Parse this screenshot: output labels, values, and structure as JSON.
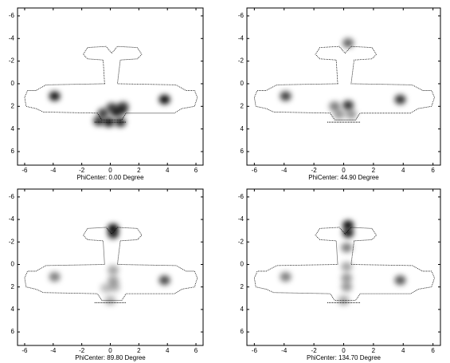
{
  "chart_data": [
    {
      "type": "scatter",
      "x_label": "PhiCenter: 0.00 Degree",
      "x": [
        -3.9,
        3.8,
        0.1,
        -0.5,
        0.4,
        0.8,
        -0.8,
        -0.1,
        0.7,
        0.9
      ],
      "y": [
        1.1,
        1.4,
        2.1,
        2.6,
        2.5,
        2.3,
        3.3,
        3.4,
        3.4,
        2.0
      ],
      "intensity": [
        0.9,
        0.95,
        0.7,
        0.75,
        0.8,
        0.7,
        0.8,
        0.9,
        0.85,
        0.6
      ],
      "xlim": [
        -6.5,
        6.5
      ],
      "ylim": [
        -6.7,
        7.2
      ],
      "xticks": [
        -6,
        -4,
        -2,
        0,
        2,
        4,
        6
      ],
      "yticks": [
        -6,
        -4,
        -2,
        0,
        2,
        4,
        6
      ]
    },
    {
      "type": "scatter",
      "x_label": "PhiCenter: 44.90 Degree",
      "x": [
        0.3,
        -3.9,
        3.8,
        0.3,
        -0.6,
        -0.3,
        0.5
      ],
      "y": [
        -3.6,
        1.1,
        1.4,
        1.9,
        2.0,
        2.7,
        2.7
      ],
      "intensity": [
        0.6,
        0.75,
        0.8,
        0.8,
        0.5,
        0.4,
        0.4
      ],
      "xlim": [
        -6.5,
        6.5
      ],
      "ylim": [
        -6.7,
        7.2
      ],
      "xticks": [
        -6,
        -4,
        -2,
        0,
        2,
        4,
        6
      ],
      "yticks": [
        -6,
        -4,
        -2,
        0,
        2,
        4,
        6
      ]
    },
    {
      "type": "scatter",
      "x_label": "PhiCenter: 89.80 Degree",
      "x": [
        0.2,
        0.2,
        -3.9,
        3.8,
        0.2,
        0.2,
        0.3,
        -0.3,
        0.0
      ],
      "y": [
        -3.2,
        -2.7,
        1.1,
        1.4,
        0.5,
        1.4,
        2.0,
        2.1,
        3.2
      ],
      "intensity": [
        0.95,
        0.8,
        0.5,
        0.7,
        0.35,
        0.35,
        0.3,
        0.25,
        0.3
      ],
      "xlim": [
        -6.5,
        6.5
      ],
      "ylim": [
        -6.7,
        7.2
      ],
      "xticks": [
        -6,
        -4,
        -2,
        0,
        2,
        4,
        6
      ],
      "yticks": [
        -6,
        -4,
        -2,
        0,
        2,
        4,
        6
      ]
    },
    {
      "type": "scatter",
      "x_label": "PhiCenter: 134.70 Degree",
      "x": [
        0.3,
        0.3,
        0.2,
        -3.9,
        3.8,
        0.2,
        0.2,
        0.2,
        0.0
      ],
      "y": [
        -3.5,
        -2.8,
        -1.5,
        1.1,
        1.4,
        0.2,
        1.2,
        2.0,
        3.2
      ],
      "intensity": [
        0.95,
        0.9,
        0.5,
        0.5,
        0.65,
        0.35,
        0.4,
        0.4,
        0.35
      ],
      "xlim": [
        -6.5,
        6.5
      ],
      "ylim": [
        -6.7,
        7.2
      ],
      "xticks": [
        -6,
        -4,
        -2,
        0,
        2,
        4,
        6
      ],
      "yticks": [
        -6,
        -4,
        -2,
        0,
        2,
        4,
        6
      ]
    }
  ]
}
